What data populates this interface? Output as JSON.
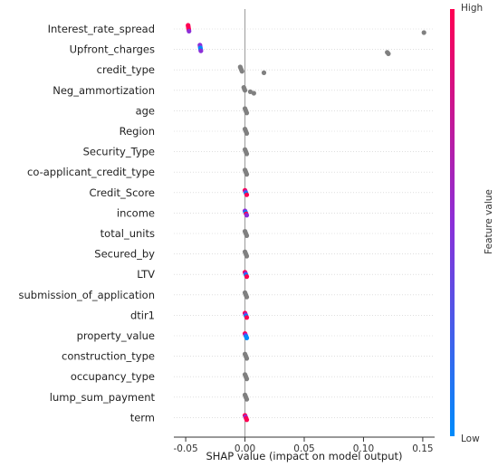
{
  "chart_data": {
    "type": "scatter",
    "subtype": "shap-beeswarm",
    "title": "",
    "xlabel": "SHAP value (impact on model output)",
    "xlim": [
      -0.06,
      0.16
    ],
    "xticks": [
      "-0.05",
      "0.00",
      "0.05",
      "0.10",
      "0.15"
    ],
    "xtick_values": [
      -0.05,
      0.0,
      0.05,
      0.1,
      0.15
    ],
    "zero_line": true,
    "colorbar": {
      "label": "Feature value",
      "high_label": "High",
      "low_label": "Low",
      "high_color": "#ff0052",
      "mid_color": "#8c2fd8",
      "low_color": "#008bfb"
    },
    "neutral_color": "#808080",
    "features": [
      {
        "name": "Interest_rate_spread",
        "points": [
          {
            "x": -0.048,
            "v": "high"
          },
          {
            "x": -0.0478,
            "v": "high"
          },
          {
            "x": -0.0476,
            "v": "high"
          },
          {
            "x": -0.0474,
            "v": "high"
          },
          {
            "x": -0.0472,
            "v": "mid"
          },
          {
            "x": 0.151,
            "v": "none"
          }
        ]
      },
      {
        "name": "Upfront_charges",
        "points": [
          {
            "x": -0.038,
            "v": "mid"
          },
          {
            "x": -0.0378,
            "v": "mid"
          },
          {
            "x": -0.0376,
            "v": "low"
          },
          {
            "x": -0.0374,
            "v": "low"
          },
          {
            "x": -0.0372,
            "v": "mid"
          },
          {
            "x": 0.12,
            "v": "none"
          },
          {
            "x": 0.121,
            "v": "none"
          }
        ]
      },
      {
        "name": "credit_type",
        "points": [
          {
            "x": -0.004,
            "v": "none"
          },
          {
            "x": -0.0035,
            "v": "none"
          },
          {
            "x": -0.003,
            "v": "none"
          },
          {
            "x": -0.0025,
            "v": "none"
          },
          {
            "x": 0.016,
            "v": "none"
          }
        ]
      },
      {
        "name": "Neg_ammortization",
        "points": [
          {
            "x": -0.001,
            "v": "none"
          },
          {
            "x": -0.0005,
            "v": "none"
          },
          {
            "x": 0.0,
            "v": "none"
          },
          {
            "x": 0.0045,
            "v": "none"
          },
          {
            "x": 0.0075,
            "v": "none"
          }
        ]
      },
      {
        "name": "age",
        "points": [
          {
            "x": 0.0,
            "v": "none"
          },
          {
            "x": 0.0005,
            "v": "none"
          },
          {
            "x": 0.001,
            "v": "none"
          },
          {
            "x": 0.0015,
            "v": "none"
          }
        ]
      },
      {
        "name": "Region",
        "points": [
          {
            "x": 0.0,
            "v": "none"
          },
          {
            "x": 0.0005,
            "v": "none"
          },
          {
            "x": 0.001,
            "v": "none"
          },
          {
            "x": 0.0015,
            "v": "none"
          }
        ]
      },
      {
        "name": "Security_Type",
        "points": [
          {
            "x": 0.0,
            "v": "none"
          },
          {
            "x": 0.0005,
            "v": "none"
          },
          {
            "x": 0.001,
            "v": "none"
          },
          {
            "x": 0.0015,
            "v": "none"
          }
        ]
      },
      {
        "name": "co-applicant_credit_type",
        "points": [
          {
            "x": 0.0,
            "v": "none"
          },
          {
            "x": 0.0005,
            "v": "none"
          },
          {
            "x": 0.001,
            "v": "none"
          },
          {
            "x": 0.0015,
            "v": "none"
          }
        ]
      },
      {
        "name": "Credit_Score",
        "points": [
          {
            "x": 0.0,
            "v": "high"
          },
          {
            "x": 0.0005,
            "v": "mid"
          },
          {
            "x": 0.001,
            "v": "low"
          },
          {
            "x": 0.0015,
            "v": "high"
          }
        ]
      },
      {
        "name": "income",
        "points": [
          {
            "x": 0.0,
            "v": "mid"
          },
          {
            "x": 0.0005,
            "v": "low"
          },
          {
            "x": 0.001,
            "v": "high"
          },
          {
            "x": 0.0015,
            "v": "mid"
          }
        ]
      },
      {
        "name": "total_units",
        "points": [
          {
            "x": 0.0,
            "v": "none"
          },
          {
            "x": 0.0005,
            "v": "none"
          },
          {
            "x": 0.001,
            "v": "none"
          },
          {
            "x": 0.0015,
            "v": "none"
          }
        ]
      },
      {
        "name": "Secured_by",
        "points": [
          {
            "x": 0.0,
            "v": "none"
          },
          {
            "x": 0.0005,
            "v": "none"
          },
          {
            "x": 0.001,
            "v": "none"
          },
          {
            "x": 0.0015,
            "v": "none"
          }
        ]
      },
      {
        "name": "LTV",
        "points": [
          {
            "x": 0.0,
            "v": "high"
          },
          {
            "x": 0.0005,
            "v": "mid"
          },
          {
            "x": 0.001,
            "v": "low"
          },
          {
            "x": 0.0015,
            "v": "high"
          }
        ]
      },
      {
        "name": "submission_of_application",
        "points": [
          {
            "x": 0.0,
            "v": "none"
          },
          {
            "x": 0.0005,
            "v": "none"
          },
          {
            "x": 0.001,
            "v": "none"
          },
          {
            "x": 0.0015,
            "v": "none"
          }
        ]
      },
      {
        "name": "dtir1",
        "points": [
          {
            "x": 0.0,
            "v": "high"
          },
          {
            "x": 0.0005,
            "v": "mid"
          },
          {
            "x": 0.001,
            "v": "low"
          },
          {
            "x": 0.0015,
            "v": "high"
          }
        ]
      },
      {
        "name": "property_value",
        "points": [
          {
            "x": 0.0,
            "v": "high"
          },
          {
            "x": 0.0005,
            "v": "mid"
          },
          {
            "x": 0.001,
            "v": "low"
          },
          {
            "x": 0.0015,
            "v": "low"
          }
        ]
      },
      {
        "name": "construction_type",
        "points": [
          {
            "x": 0.0,
            "v": "none"
          },
          {
            "x": 0.0005,
            "v": "none"
          },
          {
            "x": 0.001,
            "v": "none"
          },
          {
            "x": 0.0015,
            "v": "none"
          }
        ]
      },
      {
        "name": "occupancy_type",
        "points": [
          {
            "x": 0.0,
            "v": "none"
          },
          {
            "x": 0.0005,
            "v": "none"
          },
          {
            "x": 0.001,
            "v": "none"
          },
          {
            "x": 0.0015,
            "v": "none"
          }
        ]
      },
      {
        "name": "lump_sum_payment",
        "points": [
          {
            "x": 0.0,
            "v": "none"
          },
          {
            "x": 0.0005,
            "v": "none"
          },
          {
            "x": 0.001,
            "v": "none"
          },
          {
            "x": 0.0015,
            "v": "none"
          }
        ]
      },
      {
        "name": "term",
        "points": [
          {
            "x": 0.0,
            "v": "high"
          },
          {
            "x": 0.0005,
            "v": "mid"
          },
          {
            "x": 0.001,
            "v": "high"
          },
          {
            "x": 0.0015,
            "v": "high"
          }
        ]
      }
    ]
  }
}
